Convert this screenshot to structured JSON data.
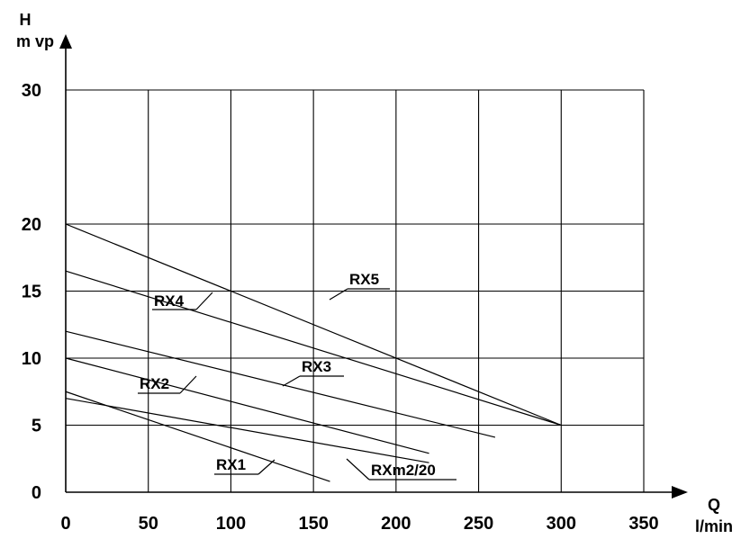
{
  "chart_data": {
    "type": "line",
    "title": "",
    "xlabel": {
      "symbol": "Q",
      "unit": "l/min"
    },
    "ylabel": {
      "symbol": "H",
      "unit": "m vp"
    },
    "xlim": [
      0,
      350
    ],
    "ylim": [
      0,
      30
    ],
    "x_ticks": [
      0,
      50,
      100,
      150,
      200,
      250,
      300,
      350
    ],
    "y_ticks": [
      0,
      5,
      10,
      15,
      20,
      30
    ],
    "y_grid": [
      5,
      10,
      15,
      20,
      30
    ],
    "x_grid": [
      50,
      100,
      150,
      200,
      250,
      300,
      350
    ],
    "grid": true,
    "legend": "inline labels",
    "series": [
      {
        "name": "RX1",
        "x": [
          0,
          160
        ],
        "y": [
          7.5,
          0.8
        ]
      },
      {
        "name": "RXm2/20",
        "x": [
          0,
          220
        ],
        "y": [
          7.0,
          2.2
        ]
      },
      {
        "name": "RX2",
        "x": [
          0,
          220
        ],
        "y": [
          10.0,
          2.9
        ]
      },
      {
        "name": "RX3",
        "x": [
          0,
          260
        ],
        "y": [
          12.0,
          4.1
        ]
      },
      {
        "name": "RX4",
        "x": [
          0,
          300
        ],
        "y": [
          16.5,
          5.0
        ]
      },
      {
        "name": "RX5",
        "x": [
          0,
          300
        ],
        "y": [
          20.0,
          5.0
        ]
      }
    ]
  }
}
